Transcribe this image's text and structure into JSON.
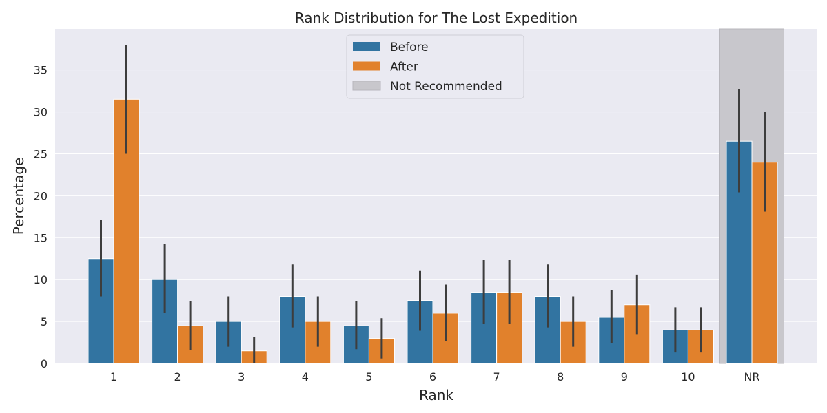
{
  "chart_data": {
    "type": "bar",
    "title": "Rank Distribution for The Lost Expedition",
    "xlabel": "Rank",
    "ylabel": "Percentage",
    "categories": [
      "1",
      "2",
      "3",
      "4",
      "5",
      "6",
      "7",
      "8",
      "9",
      "10",
      "NR"
    ],
    "ylim": [
      0,
      39.9
    ],
    "yticks": [
      0,
      5,
      10,
      15,
      20,
      25,
      30,
      35
    ],
    "grid": true,
    "legend_position": "top-center",
    "highlight": {
      "category": "NR",
      "label": "Not Recommended",
      "color": "#c8c7cc"
    },
    "series": [
      {
        "name": "Before",
        "color": "#3274a1",
        "values": [
          12.5,
          10,
          5,
          8,
          4.5,
          7.5,
          8.5,
          8,
          5.5,
          4,
          26.5
        ],
        "error_low": [
          8,
          6,
          2,
          4.3,
          1.7,
          3.9,
          4.7,
          4.3,
          2.4,
          1.3,
          20.4
        ],
        "error_high": [
          17.1,
          14.2,
          8,
          11.8,
          7.4,
          11.1,
          12.4,
          11.8,
          8.7,
          6.7,
          32.7
        ]
      },
      {
        "name": "After",
        "color": "#e1812c",
        "values": [
          31.5,
          4.5,
          1.5,
          5,
          3,
          6,
          8.5,
          5,
          7,
          4,
          24
        ],
        "error_low": [
          25,
          1.6,
          0,
          2,
          0.6,
          2.7,
          4.7,
          2,
          3.5,
          1.3,
          18.1
        ],
        "error_high": [
          38,
          7.4,
          3.2,
          8,
          5.4,
          9.4,
          12.4,
          8,
          10.6,
          6.7,
          30
        ]
      }
    ]
  }
}
